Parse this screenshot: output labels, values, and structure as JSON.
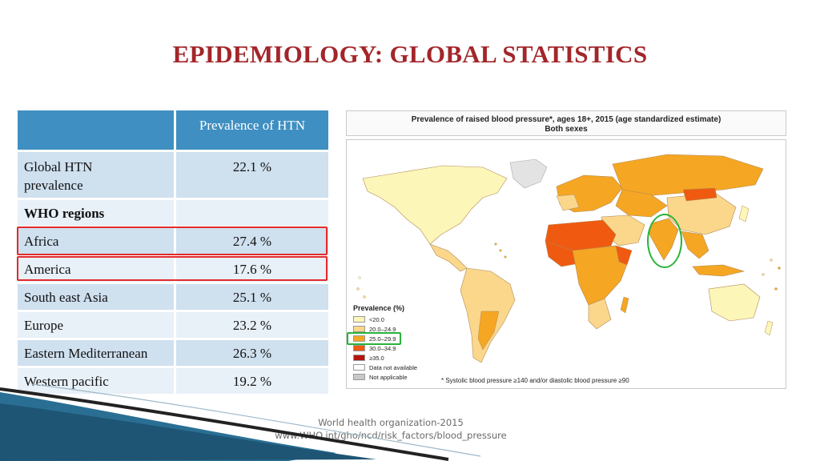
{
  "slide": {
    "title": "EPIDEMIOLOGY: GLOBAL STATISTICS",
    "table": {
      "header": {
        "col1": "",
        "col2": "Prevalence of HTN"
      },
      "global": {
        "label": "Global HTN prevalence",
        "value": "22.1 %"
      },
      "regions_heading": "WHO regions",
      "rows": [
        {
          "label": "Africa",
          "value": "27.4 %",
          "highlighted": true
        },
        {
          "label": "America",
          "value": "17.6 %",
          "highlighted": true
        },
        {
          "label": "South east Asia",
          "value": "25.1 %",
          "highlighted": false
        },
        {
          "label": "Europe",
          "value": "23.2 %",
          "highlighted": false
        },
        {
          "label": "Eastern Mediterranean",
          "value": "26.3 %",
          "highlighted": false
        },
        {
          "label": "Western pacific",
          "value": "19.2 %",
          "highlighted": false
        }
      ]
    },
    "map": {
      "title_line1": "Prevalence of raised blood pressure*, ages 18+, 2015 (age standardized estimate)",
      "title_line2": "Both sexes",
      "legend_title": "Prevalence (%)",
      "legend": [
        {
          "label": "<20.0",
          "color": "#fdf6b9"
        },
        {
          "label": "20.0–24.9",
          "color": "#fbd78c"
        },
        {
          "label": "25.0–29.9",
          "color": "#f5a623",
          "highlighted": true
        },
        {
          "label": "30.0–34.9",
          "color": "#ef5a10"
        },
        {
          "label": "≥35.0",
          "color": "#b3140c"
        },
        {
          "label": "Data not available",
          "color": "#ffffff"
        },
        {
          "label": "Not applicable",
          "color": "#c8c8c8"
        }
      ],
      "footnote": "* Systolic blood pressure ≥140 and/or diastolic blood pressure ≥90"
    },
    "source": {
      "line1": "World health organization-2015",
      "line2": "www.WHO.int/gho/ncd/risk_factors/blood_pressure"
    }
  }
}
